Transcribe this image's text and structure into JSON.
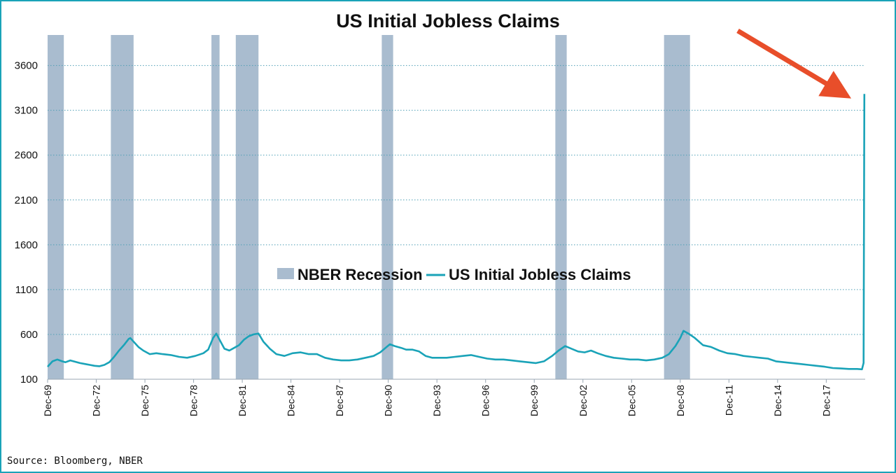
{
  "chart_data": {
    "type": "line",
    "title": "US Initial Jobless Claims",
    "source": "Source: Bloomberg, NBER",
    "y_ticks": [
      100,
      600,
      1100,
      1600,
      2100,
      2600,
      3100,
      3600
    ],
    "ylim": [
      100,
      3940
    ],
    "x_range": [
      1969.9,
      2020.3
    ],
    "x_ticks": [
      {
        "label": "Dec-69",
        "x": 1969.9
      },
      {
        "label": "Dec-72",
        "x": 1972.9
      },
      {
        "label": "Dec-75",
        "x": 1975.9
      },
      {
        "label": "Dec-78",
        "x": 1978.9
      },
      {
        "label": "Dec-81",
        "x": 1981.9
      },
      {
        "label": "Dec-84",
        "x": 1984.9
      },
      {
        "label": "Dec-87",
        "x": 1987.9
      },
      {
        "label": "Dec-90",
        "x": 1990.9
      },
      {
        "label": "Dec-93",
        "x": 1993.9
      },
      {
        "label": "Dec-96",
        "x": 1996.9
      },
      {
        "label": "Dec-99",
        "x": 1999.9
      },
      {
        "label": "Dec-02",
        "x": 2002.9
      },
      {
        "label": "Dec-05",
        "x": 2005.9
      },
      {
        "label": "Dec-08",
        "x": 2008.9
      },
      {
        "label": "Dec-11",
        "x": 2011.9
      },
      {
        "label": "Dec-14",
        "x": 2014.9
      },
      {
        "label": "Dec-17",
        "x": 2017.9
      }
    ],
    "grid": true,
    "legend_position": "center",
    "recessions": [
      {
        "start": 1969.9,
        "end": 1970.9
      },
      {
        "start": 1973.8,
        "end": 1975.2
      },
      {
        "start": 1980.0,
        "end": 1980.5
      },
      {
        "start": 1981.5,
        "end": 1982.9
      },
      {
        "start": 1990.5,
        "end": 1991.2
      },
      {
        "start": 2001.2,
        "end": 2001.9
      },
      {
        "start": 2007.9,
        "end": 2009.5
      }
    ],
    "series": [
      {
        "name": "NBER Recession",
        "color": "#a9bccf",
        "kind": "band"
      },
      {
        "name": "US Initial Jobless Claims",
        "color": "#1aa3b8",
        "kind": "line",
        "x": [
          1969.9,
          1970.2,
          1970.5,
          1970.8,
          1971.0,
          1971.3,
          1971.6,
          1971.9,
          1972.2,
          1972.5,
          1972.8,
          1973.1,
          1973.4,
          1973.7,
          1974.0,
          1974.3,
          1974.6,
          1974.9,
          1975.0,
          1975.2,
          1975.5,
          1975.8,
          1976.2,
          1976.6,
          1977.0,
          1977.5,
          1978.0,
          1978.5,
          1979.0,
          1979.5,
          1979.8,
          1980.1,
          1980.3,
          1980.5,
          1980.8,
          1981.1,
          1981.4,
          1981.7,
          1982.0,
          1982.3,
          1982.6,
          1982.9,
          1983.2,
          1983.6,
          1984.0,
          1984.5,
          1985.0,
          1985.5,
          1986.0,
          1986.5,
          1987.0,
          1987.5,
          1988.0,
          1988.5,
          1989.0,
          1989.5,
          1990.0,
          1990.4,
          1990.8,
          1991.0,
          1991.3,
          1991.7,
          1992.0,
          1992.4,
          1992.8,
          1993.2,
          1993.6,
          1994.0,
          1994.5,
          1995.0,
          1995.5,
          1996.0,
          1996.5,
          1997.0,
          1997.5,
          1998.0,
          1998.5,
          1999.0,
          1999.5,
          2000.0,
          2000.5,
          2001.0,
          2001.4,
          2001.8,
          2002.2,
          2002.6,
          2003.0,
          2003.4,
          2003.8,
          2004.3,
          2004.8,
          2005.3,
          2005.8,
          2006.3,
          2006.8,
          2007.3,
          2007.8,
          2008.2,
          2008.6,
          2008.9,
          2009.1,
          2009.4,
          2009.8,
          2010.3,
          2010.8,
          2011.3,
          2011.8,
          2012.3,
          2012.8,
          2013.3,
          2013.8,
          2014.3,
          2014.8,
          2015.3,
          2015.8,
          2016.3,
          2016.8,
          2017.3,
          2017.8,
          2018.3,
          2018.8,
          2019.3,
          2019.8,
          2020.1,
          2020.2,
          2020.25
        ],
        "values": [
          240,
          300,
          320,
          300,
          290,
          310,
          295,
          280,
          270,
          260,
          250,
          245,
          260,
          290,
          350,
          420,
          480,
          550,
          560,
          520,
          460,
          420,
          380,
          390,
          380,
          370,
          350,
          340,
          360,
          390,
          430,
          560,
          610,
          540,
          440,
          420,
          450,
          480,
          540,
          580,
          600,
          610,
          520,
          440,
          380,
          360,
          390,
          400,
          380,
          380,
          340,
          320,
          310,
          310,
          320,
          340,
          360,
          400,
          460,
          490,
          470,
          450,
          430,
          430,
          410,
          360,
          340,
          340,
          340,
          350,
          360,
          370,
          350,
          330,
          320,
          320,
          310,
          300,
          290,
          280,
          300,
          360,
          420,
          470,
          440,
          410,
          400,
          420,
          390,
          360,
          340,
          330,
          320,
          320,
          310,
          320,
          340,
          380,
          470,
          560,
          640,
          610,
          560,
          480,
          460,
          420,
          390,
          380,
          360,
          350,
          340,
          330,
          300,
          290,
          280,
          270,
          260,
          250,
          240,
          225,
          220,
          215,
          215,
          211,
          282,
          3283
        ]
      }
    ]
  }
}
